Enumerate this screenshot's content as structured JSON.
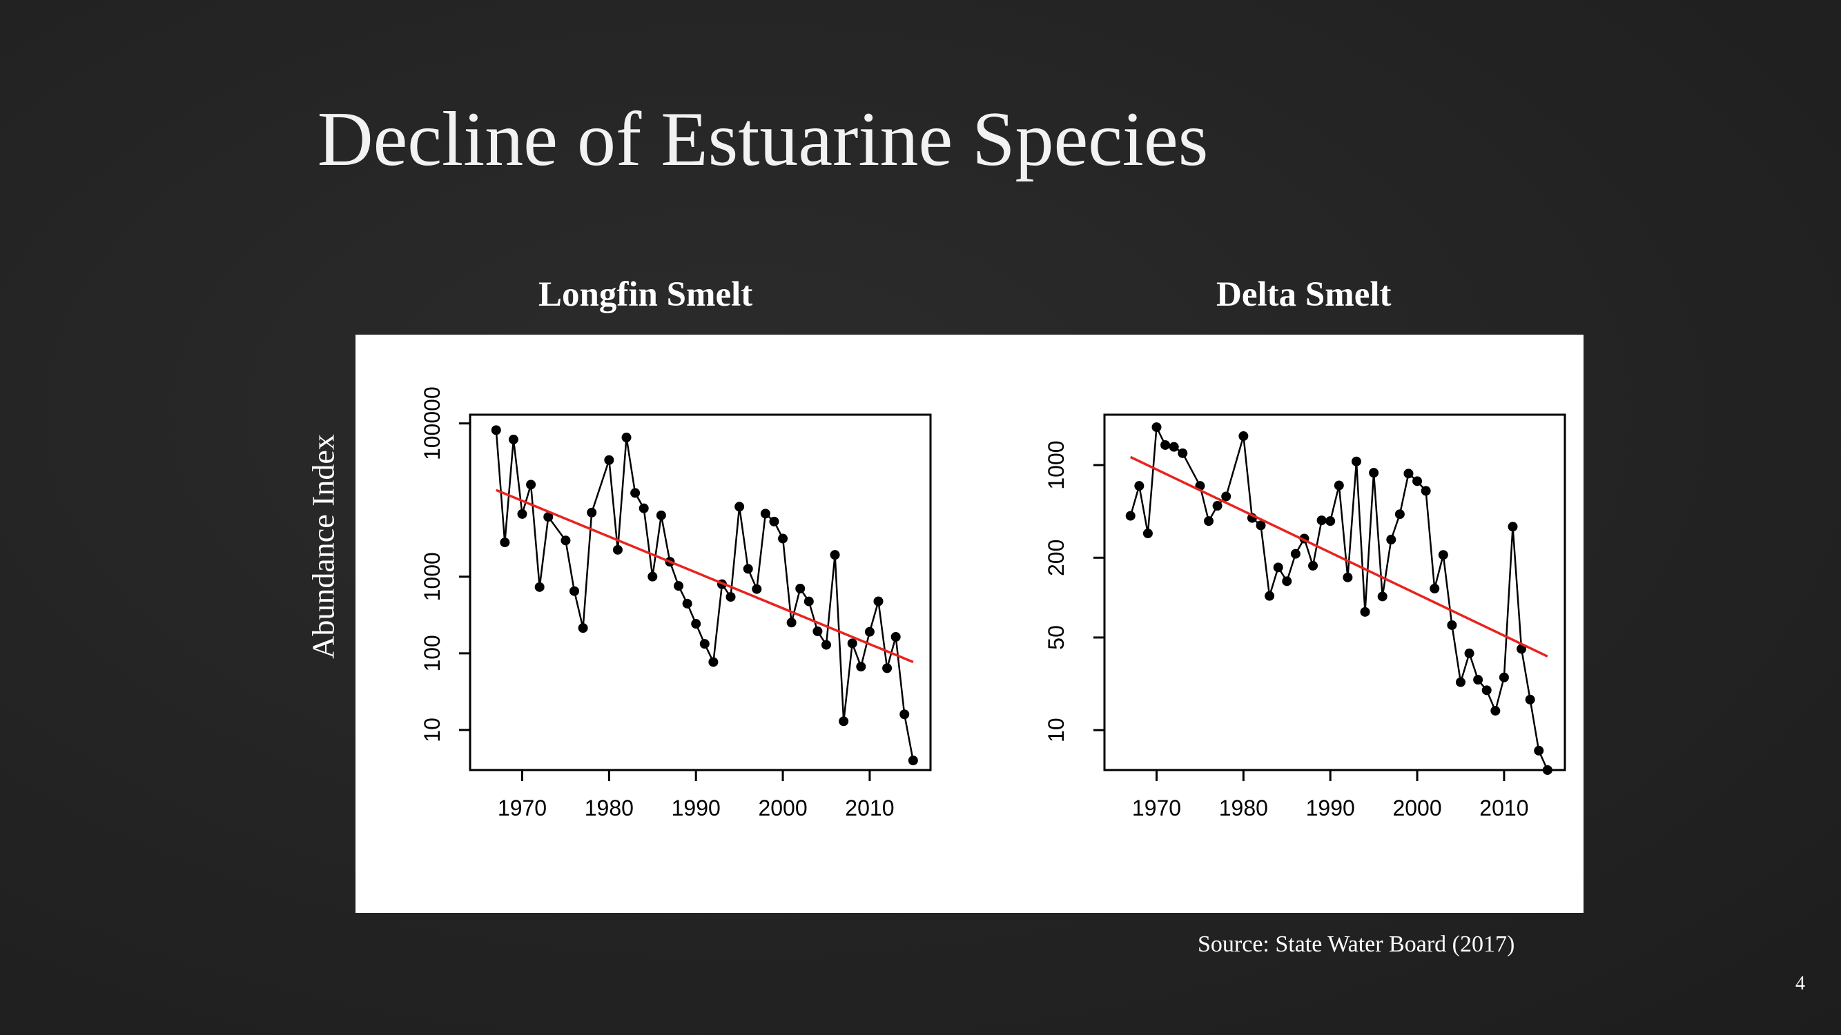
{
  "slide": {
    "title": "Decline of Estuarine Species",
    "ylabel": "Abundance Index",
    "source": "Source: State Water Board (2017)",
    "page_number": "4"
  },
  "colors": {
    "trend": "#e8231f",
    "series": "#000000"
  },
  "chart_data": [
    {
      "type": "line",
      "title": "Longfin Smelt",
      "ylabel": "Abundance Index",
      "yscale": "log",
      "xlim": [
        1964,
        2017
      ],
      "ylim": [
        3,
        130000
      ],
      "xticks": [
        1970,
        1980,
        1990,
        2000,
        2010
      ],
      "yticks": [
        10,
        100,
        1000,
        100000
      ],
      "ytick_labels": [
        "10",
        "100",
        "1000",
        "100000"
      ],
      "x": [
        1967,
        1968,
        1969,
        1970,
        1971,
        1972,
        1973,
        1975,
        1976,
        1977,
        1978,
        1980,
        1981,
        1982,
        1983,
        1984,
        1985,
        1986,
        1987,
        1988,
        1989,
        1990,
        1991,
        1992,
        1993,
        1994,
        1995,
        1996,
        1997,
        1998,
        1999,
        2000,
        2001,
        2002,
        2003,
        2004,
        2005,
        2006,
        2007,
        2008,
        2009,
        2010,
        2011,
        2012,
        2013,
        2014,
        2015
      ],
      "y": [
        81737,
        2801,
        61760,
        6582,
        15900,
        732,
        6034,
        2969,
        648,
        214,
        6863,
        33265,
        2243,
        65555,
        12380,
        7805,
        1003,
        6320,
        1567,
        758,
        445,
        243,
        133,
        77,
        798,
        545,
        8205,
        1266,
        690,
        6654,
        5243,
        3145,
        252,
        700,
        476,
        194,
        129,
        1927,
        13,
        135,
        67,
        191,
        477,
        64,
        164,
        16,
        4
      ],
      "trend": {
        "x": [
          1967,
          2015
        ],
        "y": [
          13500,
          77
        ]
      }
    },
    {
      "type": "line",
      "title": "Delta Smelt",
      "yscale": "log",
      "xlim": [
        1964,
        2017
      ],
      "ylim": [
        5,
        2400
      ],
      "xticks": [
        1970,
        1980,
        1990,
        2000,
        2010
      ],
      "yticks": [
        10,
        50,
        200,
        1000
      ],
      "ytick_labels": [
        "10",
        "50",
        "200",
        "1000"
      ],
      "x": [
        1967,
        1968,
        1969,
        1970,
        1971,
        1972,
        1973,
        1975,
        1976,
        1977,
        1978,
        1980,
        1981,
        1982,
        1983,
        1984,
        1985,
        1986,
        1987,
        1988,
        1989,
        1990,
        1991,
        1992,
        1993,
        1994,
        1995,
        1996,
        1997,
        1998,
        1999,
        2000,
        2001,
        2002,
        2003,
        2004,
        2005,
        2006,
        2007,
        2008,
        2009,
        2010,
        2011,
        2012,
        2013,
        2014,
        2015
      ],
      "y": [
        414,
        697,
        305,
        1932,
        1417,
        1372,
        1229,
        697,
        378,
        493,
        580,
        1654,
        399,
        351,
        103,
        169,
        133,
        214,
        279,
        174,
        383,
        378,
        702,
        142,
        1065,
        78,
        875,
        102,
        274,
        426,
        863,
        756,
        639,
        117,
        210,
        62,
        23,
        38,
        24,
        20,
        14,
        25,
        343,
        41,
        17,
        7,
        5
      ],
      "trend": {
        "x": [
          1967,
          2015
        ],
        "y": [
          1150,
          36
        ]
      }
    }
  ]
}
